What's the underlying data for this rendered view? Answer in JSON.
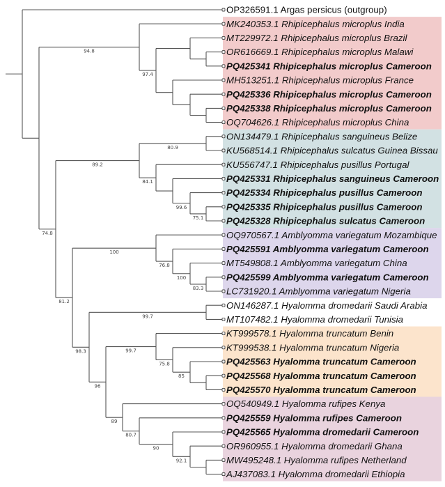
{
  "leaves": [
    {
      "label": "OP326591.1 Argas persicus (outgroup)",
      "style": "normal"
    },
    {
      "label": "MK240353.1 Rhipicephalus microplus India",
      "style": "italic"
    },
    {
      "label": "MT229972.1 Rhipicephalus microplus Brazil",
      "style": "italic"
    },
    {
      "label": "OR616669.1 Rhipicephalus microplus Malawi",
      "style": "italic"
    },
    {
      "label": "PQ425341 Rhipicephalus microplus Cameroon",
      "style": "bold"
    },
    {
      "label": "MH513251.1 Rhipicephalus microplus France",
      "style": "italic"
    },
    {
      "label": "PQ425336 Rhipicephalus microplus Cameroon",
      "style": "bold"
    },
    {
      "label": "PQ425338 Rhipicephalus microplus Cameroon",
      "style": "bold"
    },
    {
      "label": "OQ704626.1 Rhipicephalus microplus China",
      "style": "italic"
    },
    {
      "label": "ON134479.1 Rhipicephalus sanguineus Belize",
      "style": "italic"
    },
    {
      "label": "KU568514.1 Rhipicephalus sulcatus Guinea Bissau",
      "style": "italic"
    },
    {
      "label": "KU556747.1 Rhipicephalus pusillus Portugal",
      "style": "italic"
    },
    {
      "label": "PQ425331 Rhipicephalus sanguineus Cameroon",
      "style": "bold"
    },
    {
      "label": "PQ425334 Rhipicephalus pusillus Cameroon",
      "style": "bold"
    },
    {
      "label": "PQ425335 Rhipicephalus pusillus Cameroon",
      "style": "bold"
    },
    {
      "label": "PQ425328 Rhipicephalus sulcatus Cameroon",
      "style": "bold"
    },
    {
      "label": "OQ970567.1 Amblyomma variegatum Mozambique",
      "style": "italic"
    },
    {
      "label": "PQ425591 Amblyomma variegatum Cameroon",
      "style": "bold"
    },
    {
      "label": "MT549808.1 Amblyomma variegatum China",
      "style": "italic"
    },
    {
      "label": "PQ425599 Amblyomma variegatum Cameroon",
      "style": "bold"
    },
    {
      "label": "LC731920.1 Amblyomma variegatum Nigeria",
      "style": "italic"
    },
    {
      "label": "ON146287.1 Hyalomma dromedarii Saudi Arabia",
      "style": "italic"
    },
    {
      "label": "MT107482.1 Hyalomma dromedarii Tunisia",
      "style": "italic"
    },
    {
      "label": "KT999578.1 Hyalomma truncatum Benin",
      "style": "italic"
    },
    {
      "label": "KT999538.1 Hyalomma truncatum Nigeria",
      "style": "italic"
    },
    {
      "label": "PQ425563 Hyalomma truncatum Cameroon",
      "style": "bold"
    },
    {
      "label": "PQ425568 Hyalomma truncatum Cameroon",
      "style": "bold"
    },
    {
      "label": "PQ425570 Hyalomma truncatum Cameroon",
      "style": "bold"
    },
    {
      "label": "OQ540949.1 Hyalomma rufipes Kenya",
      "style": "italic"
    },
    {
      "label": "PQ425559 Hyalomma rufipes Cameroon",
      "style": "bold"
    },
    {
      "label": "PQ425565 Hyalomma dromedarii Cameroon",
      "style": "bold"
    },
    {
      "label": "OR960955.1 Hyalomma dromedarii Ghana",
      "style": "italic"
    },
    {
      "label": "MW495248.1 Hyalomma rufipes Netherland",
      "style": "italic"
    },
    {
      "label": "AJ437083.1 Hyalomma dromedarii Ethiopia",
      "style": "italic"
    }
  ],
  "clade_highlights": [
    {
      "color": "#F2CBCB",
      "from_leaf": 1,
      "to_leaf": 8
    },
    {
      "color": "#D2E1E3",
      "from_leaf": 9,
      "to_leaf": 15
    },
    {
      "color": "#DDD6EC",
      "from_leaf": 16,
      "to_leaf": 20
    },
    {
      "color": "#FCE4CC",
      "from_leaf": 23,
      "to_leaf": 27
    },
    {
      "color": "#E9D3DE",
      "from_leaf": 28,
      "to_leaf": 33
    }
  ],
  "tree": {
    "children": [
      0,
      {
        "children": [
          {
            "support": "94.8",
            "children": [
              1,
              {
                "support": "97.4",
                "children": [
                  {
                    "children": [
                      2,
                      {
                        "children": [
                          3,
                          4
                        ]
                      }
                    ]
                  },
                  {
                    "children": [
                      5,
                      {
                        "children": [
                          6,
                          {
                            "children": [
                              7,
                              8
                            ]
                          }
                        ]
                      }
                    ]
                  }
                ]
              }
            ]
          },
          {
            "support": "74.8",
            "children": [
              {
                "support": "89.2",
                "children": [
                  {
                    "support": "80.9",
                    "children": [
                      9,
                      10
                    ]
                  },
                  {
                    "support": "84.1",
                    "children": [
                      11,
                      {
                        "children": [
                          12,
                          {
                            "support": "99.6",
                            "children": [
                              13,
                              {
                                "support": "75.1",
                                "children": [
                                  14,
                                  15
                                ]
                              }
                            ]
                          }
                        ]
                      }
                    ]
                  }
                ]
              },
              {
                "support": "81.2",
                "children": [
                  {
                    "support": "100",
                    "children": [
                      16,
                      {
                        "support": "76.8",
                        "children": [
                          17,
                          {
                            "support": "100",
                            "children": [
                              18,
                              {
                                "support": "83.3",
                                "children": [
                                  19,
                                  20
                                ]
                              }
                            ]
                          }
                        ]
                      }
                    ]
                  },
                  {
                    "support": "98.3",
                    "children": [
                      {
                        "support": "99.7",
                        "children": [
                          21,
                          22
                        ]
                      },
                      {
                        "support": "96",
                        "children": [
                          {
                            "support": "99.7",
                            "children": [
                              23,
                              {
                                "support": "75.8",
                                "children": [
                                  24,
                                  {
                                    "support": "85",
                                    "children": [
                                      25,
                                      {
                                        "children": [
                                          26,
                                          27
                                        ]
                                      }
                                    ]
                                  }
                                ]
                              }
                            ]
                          },
                          {
                            "support": "89",
                            "children": [
                              28,
                              {
                                "support": "80.7",
                                "children": [
                                  29,
                                  {
                                    "support": "90",
                                    "children": [
                                      30,
                                      {
                                        "support": "92.1",
                                        "children": [
                                          31,
                                          {
                                            "children": [
                                              32,
                                              33
                                            ]
                                          }
                                        ]
                                      }
                                    ]
                                  }
                                ]
                              }
                            ]
                          }
                        ]
                      }
                    ]
                  }
                ]
              }
            ]
          }
        ]
      }
    ]
  }
}
